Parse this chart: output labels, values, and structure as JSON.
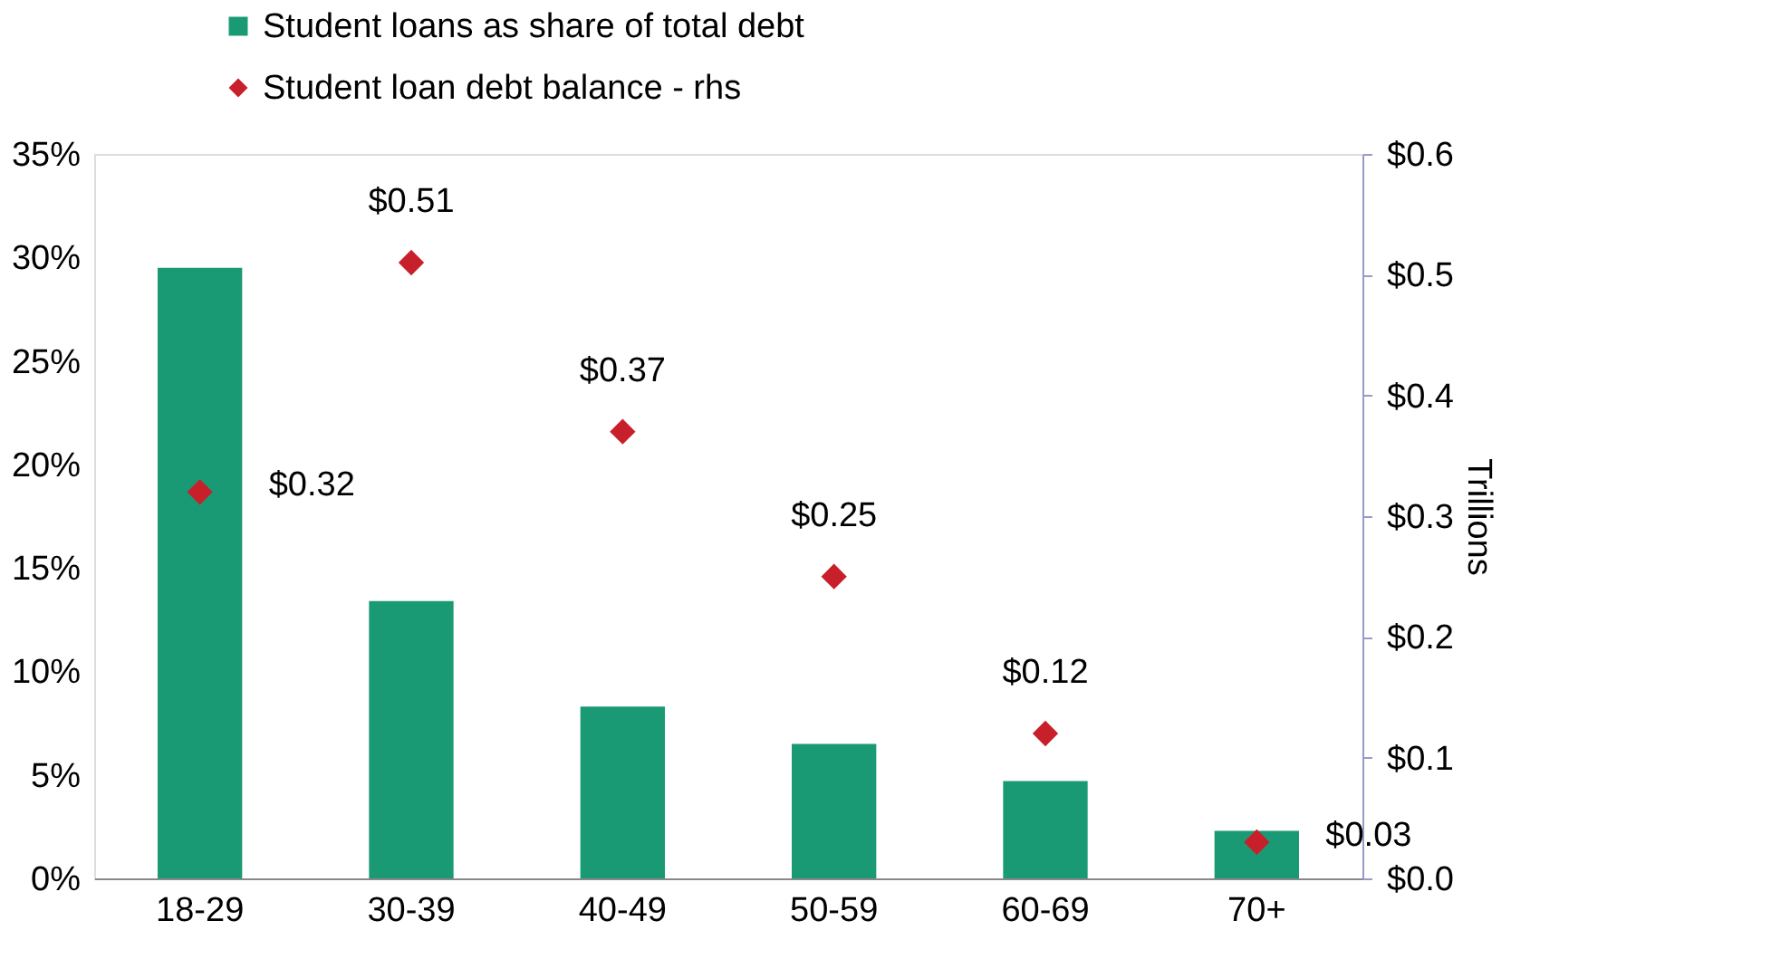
{
  "chart_data": {
    "type": "bar",
    "categories": [
      "18-29",
      "30-39",
      "40-49",
      "50-59",
      "60-69",
      "70+"
    ],
    "series": [
      {
        "name": "Student loans as share of total debt",
        "color": "#1a9a74",
        "values": [
          29.5,
          13.4,
          8.3,
          6.5,
          4.7,
          2.3
        ]
      },
      {
        "name": "Student loan debt balance - rhs",
        "type": "scatter",
        "axis": "y2",
        "color": "#c8202a",
        "values": [
          0.32,
          0.51,
          0.37,
          0.25,
          0.12,
          0.03
        ],
        "value_labels": [
          "$0.32",
          "$0.51",
          "$0.37",
          "$0.25",
          "$0.12",
          "$0.03"
        ]
      }
    ],
    "ylim": [
      0,
      35
    ],
    "yticks": [
      {
        "value": 0,
        "label": "0%"
      },
      {
        "value": 5,
        "label": "5%"
      },
      {
        "value": 10,
        "label": "10%"
      },
      {
        "value": 15,
        "label": "15%"
      },
      {
        "value": 20,
        "label": "20%"
      },
      {
        "value": 25,
        "label": "25%"
      },
      {
        "value": 30,
        "label": "30%"
      },
      {
        "value": 35,
        "label": "35%"
      }
    ],
    "y2lim": [
      0,
      0.6
    ],
    "y2ticks": [
      {
        "value": 0,
        "label": "$0.0"
      },
      {
        "value": 0.1,
        "label": "$0.1"
      },
      {
        "value": 0.2,
        "label": "$0.2"
      },
      {
        "value": 0.3,
        "label": "$0.3"
      },
      {
        "value": 0.4,
        "label": "$0.4"
      },
      {
        "value": 0.5,
        "label": "$0.5"
      },
      {
        "value": 0.6,
        "label": "$0.6"
      }
    ],
    "y2label": "Trillions",
    "marker": "diamond",
    "legend": "top left",
    "grid": false
  }
}
